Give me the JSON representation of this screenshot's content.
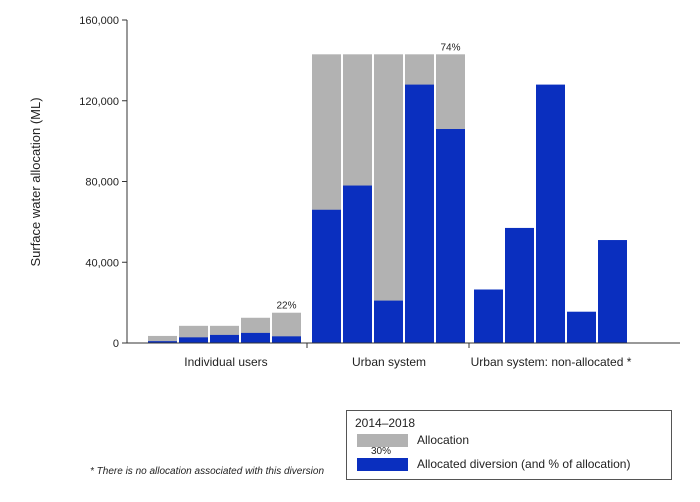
{
  "chart_data": {
    "type": "bar",
    "ylabel": "Surface water allocation (ML)",
    "ylim": [
      0,
      160000
    ],
    "yticks": [
      0,
      40000,
      80000,
      120000,
      160000
    ],
    "ytick_labels": [
      "0",
      "40,000",
      "80,000",
      "120,000",
      "160,000"
    ],
    "groups": [
      {
        "name": "Individual users",
        "allocation": [
          3500,
          8500,
          8500,
          12500,
          15000
        ],
        "diversion": [
          900,
          2800,
          4000,
          5000,
          3300
        ],
        "percent_label": "22%"
      },
      {
        "name": "Urban system",
        "allocation": [
          143000,
          143000,
          143000,
          143000,
          143000
        ],
        "diversion": [
          66000,
          78000,
          21000,
          128000,
          106000
        ],
        "percent_label": "74%"
      },
      {
        "name": "Urban system: non-allocated *",
        "allocation": [
          0,
          0,
          0,
          0,
          0
        ],
        "diversion": [
          26500,
          57000,
          128000,
          15500,
          51000
        ],
        "percent_label": ""
      }
    ],
    "legend": {
      "title": "2014–2018",
      "items": [
        {
          "label": "Allocation",
          "color": "#b2b2b2"
        },
        {
          "label": "Allocated diversion (and % of allocation)",
          "color": "#0a2fbf",
          "sample_pct": "30%"
        }
      ],
      "position": "bottom-right"
    },
    "footnote": "* There is no allocation associated with this diversion"
  },
  "colors": {
    "allocation": "#b2b2b2",
    "diversion": "#0a2fbf"
  }
}
